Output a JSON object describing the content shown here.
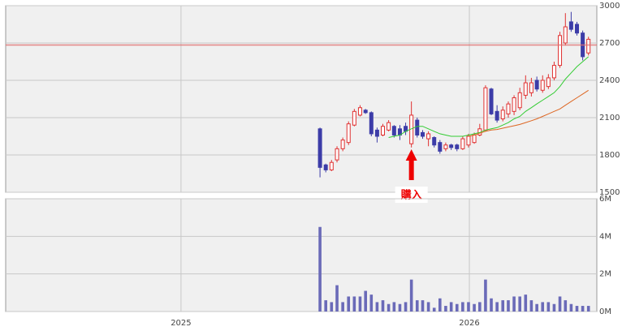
{
  "chart_data": [
    {
      "type": "candlestick",
      "x": [
        2025.482,
        2025.502,
        2025.522,
        2025.541,
        2025.561,
        2025.581,
        2025.601,
        2025.621,
        2025.64,
        2025.66,
        2025.68,
        2025.7,
        2025.72,
        2025.739,
        2025.759,
        2025.779,
        2025.799,
        2025.819,
        2025.838,
        2025.858,
        2025.878,
        2025.898,
        2025.918,
        2025.937,
        2025.957,
        2025.977,
        2025.997,
        2026.017,
        2026.036,
        2026.056,
        2026.076,
        2026.096,
        2026.116,
        2026.135,
        2026.155,
        2026.175,
        2026.195,
        2026.215,
        2026.234,
        2026.254,
        2026.274,
        2026.294,
        2026.314,
        2026.333,
        2026.353,
        2026.373,
        2026.393,
        2026.413
      ],
      "open": [
        2010,
        1720,
        1680,
        1760,
        1850,
        1900,
        2040,
        2120,
        2160,
        2140,
        2000,
        1960,
        2000,
        2030,
        2010,
        2030,
        1890,
        2080,
        1980,
        1930,
        1940,
        1900,
        1850,
        1880,
        1880,
        1850,
        1880,
        1900,
        1960,
        2000,
        2330,
        2150,
        2090,
        2130,
        2150,
        2180,
        2280,
        2300,
        2400,
        2320,
        2350,
        2420,
        2520,
        2700,
        2870,
        2850,
        2780,
        2620
      ],
      "high": [
        2020,
        1730,
        1760,
        1870,
        1940,
        2070,
        2170,
        2200,
        2170,
        2150,
        2020,
        2050,
        2080,
        2040,
        2040,
        2060,
        2230,
        2100,
        2000,
        1990,
        1950,
        1920,
        1900,
        1890,
        1890,
        1950,
        1970,
        1980,
        2050,
        2360,
        2340,
        2200,
        2190,
        2230,
        2280,
        2340,
        2440,
        2420,
        2430,
        2440,
        2450,
        2550,
        2790,
        2940,
        2950,
        2870,
        2800,
        2750
      ],
      "low": [
        1620,
        1660,
        1670,
        1740,
        1830,
        1880,
        2030,
        2110,
        2130,
        1950,
        1900,
        1950,
        1990,
        1940,
        1920,
        1960,
        1860,
        1940,
        1930,
        1870,
        1860,
        1810,
        1830,
        1840,
        1830,
        1840,
        1860,
        1890,
        1950,
        1990,
        2120,
        2060,
        2070,
        2100,
        2120,
        2160,
        2250,
        2270,
        2310,
        2300,
        2330,
        2400,
        2500,
        2680,
        2790,
        2760,
        2560,
        2600
      ],
      "close": [
        1700,
        1680,
        1740,
        1850,
        1920,
        2050,
        2150,
        2180,
        2140,
        1970,
        1950,
        2030,
        2060,
        1960,
        1960,
        1990,
        2120,
        1960,
        1950,
        1970,
        1880,
        1830,
        1880,
        1860,
        1850,
        1930,
        1950,
        1960,
        2010,
        2340,
        2130,
        2080,
        2160,
        2210,
        2260,
        2300,
        2380,
        2380,
        2330,
        2400,
        2420,
        2520,
        2760,
        2830,
        2810,
        2780,
        2590,
        2730
      ],
      "up_color": "#e03030",
      "down_color": "#3c3ca8",
      "lines": [
        {
          "color": "#33cc33",
          "values": [
            null,
            null,
            null,
            null,
            null,
            null,
            null,
            null,
            null,
            null,
            null,
            null,
            1940,
            1950,
            1960,
            1990,
            2010,
            2030,
            2030,
            2010,
            1990,
            1970,
            1960,
            1950,
            1950,
            1950,
            1960,
            1970,
            1980,
            2000,
            2010,
            2020,
            2040,
            2060,
            2090,
            2110,
            2150,
            2180,
            2210,
            2240,
            2270,
            2300,
            2350,
            2410,
            2460,
            2510,
            2550,
            2590
          ]
        },
        {
          "color": "#dd6622",
          "values": [
            null,
            null,
            null,
            null,
            null,
            null,
            null,
            null,
            null,
            null,
            null,
            null,
            null,
            null,
            null,
            null,
            null,
            null,
            null,
            null,
            null,
            null,
            null,
            null,
            null,
            null,
            1950,
            1960,
            1975,
            1990,
            2000,
            2005,
            2015,
            2025,
            2035,
            2045,
            2060,
            2075,
            2090,
            2110,
            2130,
            2150,
            2170,
            2200,
            2230,
            2260,
            2290,
            2320
          ]
        }
      ],
      "hline": 2685,
      "hline_color": "#e07070",
      "annotation": {
        "text": "購入",
        "x": 2025.799,
        "color": "#ee0000"
      },
      "xlim": [
        2024.392,
        2026.442
      ],
      "xticks": [
        2025,
        2026
      ],
      "ylim": [
        1500,
        3000
      ],
      "yticks": [
        1500,
        1800,
        2100,
        2400,
        2700,
        3000
      ],
      "grid": true
    },
    {
      "type": "bar",
      "x": [
        2025.482,
        2025.502,
        2025.522,
        2025.541,
        2025.561,
        2025.581,
        2025.601,
        2025.621,
        2025.64,
        2025.66,
        2025.68,
        2025.7,
        2025.72,
        2025.739,
        2025.759,
        2025.779,
        2025.799,
        2025.819,
        2025.838,
        2025.858,
        2025.878,
        2025.898,
        2025.918,
        2025.937,
        2025.957,
        2025.977,
        2025.997,
        2026.017,
        2026.036,
        2026.056,
        2026.076,
        2026.096,
        2026.116,
        2026.135,
        2026.155,
        2026.175,
        2026.195,
        2026.215,
        2026.234,
        2026.254,
        2026.274,
        2026.294,
        2026.314,
        2026.333,
        2026.353,
        2026.373,
        2026.393,
        2026.413
      ],
      "values": [
        4.5,
        0.6,
        0.5,
        1.4,
        0.5,
        0.8,
        0.8,
        0.8,
        1.1,
        0.9,
        0.5,
        0.6,
        0.4,
        0.5,
        0.4,
        0.5,
        1.7,
        0.6,
        0.6,
        0.5,
        0.2,
        0.7,
        0.3,
        0.5,
        0.4,
        0.5,
        0.5,
        0.4,
        0.5,
        1.7,
        0.7,
        0.5,
        0.6,
        0.6,
        0.8,
        0.8,
        0.9,
        0.6,
        0.4,
        0.5,
        0.5,
        0.4,
        0.8,
        0.6,
        0.4,
        0.3,
        0.3,
        0.3
      ],
      "color": "#6a6ab8",
      "xlim": [
        2024.392,
        2026.442
      ],
      "xticks": [
        2025,
        2026
      ],
      "ylim": [
        0,
        6
      ],
      "yticks": [
        {
          "value": 0,
          "label": "0M"
        },
        {
          "value": 2,
          "label": "2M"
        },
        {
          "value": 4,
          "label": "4M"
        },
        {
          "value": 6,
          "label": "6M"
        }
      ],
      "grid": true
    }
  ]
}
